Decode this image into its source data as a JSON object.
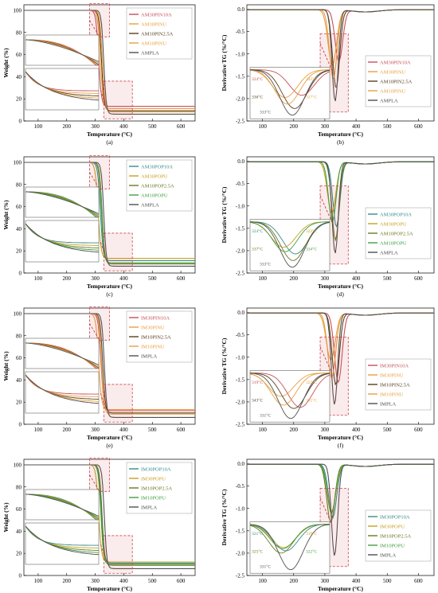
{
  "figure": {
    "colors": {
      "PIN10A": "#c8505a",
      "PINU": "#e8a040",
      "PIN2_5A": "#5a4020",
      "POP10A": "#3a8a8a",
      "POPU": "#c8a020",
      "POP2_5A": "#6a7a20",
      "POPU10": "#40a040",
      "PLA": "#505050",
      "highlight": "#d04048"
    }
  },
  "chart_data": [
    {
      "panel": "(a)",
      "type": "line",
      "kind": "tg",
      "xlabel": "Temperature (°C)",
      "ylabel": "Weight (%)",
      "xlim": [
        50,
        650
      ],
      "ylim": [
        0,
        105
      ],
      "xticks": [
        100,
        200,
        300,
        400,
        500,
        600
      ],
      "yticks": [
        0,
        20,
        40,
        60,
        80,
        100
      ],
      "series": [
        {
          "name": "AM30PIN10A",
          "color": "PIN10A",
          "onset": 312,
          "width": 20,
          "residue": 13
        },
        {
          "name": "AM30PINU",
          "color": "PINU",
          "onset": 318,
          "width": 20,
          "residue": 11
        },
        {
          "name": "AM10PIN2.5A",
          "color": "PIN2_5A",
          "onset": 322,
          "width": 19,
          "residue": 9
        },
        {
          "name": "AM10PINU",
          "color": "PINU",
          "onset": 325,
          "width": 19,
          "residue": 8
        },
        {
          "name": "AMPLA",
          "color": "PLA",
          "onset": 330,
          "width": 18,
          "residue": 6
        }
      ],
      "annotations": []
    },
    {
      "panel": "(b)",
      "type": "line",
      "kind": "dtg",
      "xlabel": "Temperature (°C)",
      "ylabel": "Derivative TG (%/°C)",
      "xlim": [
        50,
        650
      ],
      "ylim": [
        -2.5,
        0.1
      ],
      "xticks": [
        100,
        200,
        300,
        400,
        500,
        600
      ],
      "yticks": [
        0.0,
        -0.5,
        -1.0,
        -1.5,
        -2.0,
        -2.5
      ],
      "series": [
        {
          "name": "AM30PIN10A",
          "color": "PIN10A",
          "peak": 345,
          "depth": -1.15,
          "width": 17
        },
        {
          "name": "AM30PINU",
          "color": "PINU",
          "peak": 324,
          "depth": -1.25,
          "width": 19
        },
        {
          "name": "AM10PIN2.5A",
          "color": "PIN2_5A",
          "peak": 336,
          "depth": -1.75,
          "width": 16
        },
        {
          "name": "AM10PINU",
          "color": "PINU",
          "peak": 327,
          "depth": -1.55,
          "width": 17
        },
        {
          "name": "AMPLA",
          "color": "PLA",
          "peak": 333,
          "depth": -2.05,
          "width": 14
        }
      ],
      "annotations": [
        "324°C",
        "345°C",
        "336°C",
        "327°C",
        "333°C"
      ]
    },
    {
      "panel": "(c)",
      "type": "line",
      "kind": "tg",
      "xlabel": "Temperature (°C)",
      "ylabel": "Weight (%)",
      "xlim": [
        50,
        650
      ],
      "ylim": [
        0,
        105
      ],
      "xticks": [
        100,
        200,
        300,
        400,
        500,
        600
      ],
      "yticks": [
        0,
        20,
        40,
        60,
        80,
        100
      ],
      "series": [
        {
          "name": "AM30POP10A",
          "color": "POP10A",
          "onset": 318,
          "width": 20,
          "residue": 11
        },
        {
          "name": "AM30POPU",
          "color": "POPU",
          "onset": 310,
          "width": 21,
          "residue": 13
        },
        {
          "name": "AM10POP2.5A",
          "color": "POP2_5A",
          "onset": 324,
          "width": 19,
          "residue": 8
        },
        {
          "name": "AM10POPU",
          "color": "POPU10",
          "onset": 322,
          "width": 19,
          "residue": 9
        },
        {
          "name": "AMPLA",
          "color": "PLA",
          "onset": 330,
          "width": 18,
          "residue": 6
        }
      ],
      "annotations": []
    },
    {
      "panel": "(d)",
      "type": "line",
      "kind": "dtg",
      "xlabel": "Temperature (°C)",
      "ylabel": "Derivative TG (%/°C)",
      "xlim": [
        50,
        650
      ],
      "ylim": [
        -2.5,
        0.1
      ],
      "xticks": [
        100,
        200,
        300,
        400,
        500,
        600
      ],
      "yticks": [
        0.0,
        -0.5,
        -1.0,
        -1.5,
        -2.0,
        -2.5
      ],
      "series": [
        {
          "name": "AM30POP10A",
          "color": "POP10A",
          "peak": 337,
          "depth": -1.45,
          "width": 16
        },
        {
          "name": "AM30POPU",
          "color": "POPU",
          "peak": 322,
          "depth": -1.15,
          "width": 19
        },
        {
          "name": "AM10POP2.5A",
          "color": "POP2_5A",
          "peak": 334,
          "depth": -1.75,
          "width": 16
        },
        {
          "name": "AM10POPU",
          "color": "POPU10",
          "peak": 324,
          "depth": -1.35,
          "width": 17
        },
        {
          "name": "AMPLA",
          "color": "PLA",
          "peak": 333,
          "depth": -2.05,
          "width": 14
        }
      ],
      "annotations": [
        "324°C",
        "322°C",
        "337°C",
        "334°C",
        "333°C"
      ]
    },
    {
      "panel": "(e)",
      "type": "line",
      "kind": "tg",
      "xlabel": "Temperature (°C)",
      "ylabel": "Weight (%)",
      "xlim": [
        50,
        650
      ],
      "ylim": [
        0,
        105
      ],
      "xticks": [
        100,
        200,
        300,
        400,
        500,
        600
      ],
      "yticks": [
        0,
        20,
        40,
        60,
        80,
        100
      ],
      "series": [
        {
          "name": "IM30PIN10A",
          "color": "PIN10A",
          "onset": 320,
          "width": 20,
          "residue": 12
        },
        {
          "name": "IM30PINU",
          "color": "PINU",
          "onset": 312,
          "width": 21,
          "residue": 13
        },
        {
          "name": "IM10PIN2.5A",
          "color": "PIN2_5A",
          "onset": 326,
          "width": 19,
          "residue": 10
        },
        {
          "name": "IM10PINU",
          "color": "PINU",
          "onset": 322,
          "width": 19,
          "residue": 9
        },
        {
          "name": "IMPLA",
          "color": "PLA",
          "onset": 332,
          "width": 18,
          "residue": 6
        }
      ],
      "annotations": []
    },
    {
      "panel": "(f)",
      "type": "line",
      "kind": "dtg",
      "xlabel": "Temperature (°C)",
      "ylabel": "Derivative TG (%/°C)",
      "xlim": [
        50,
        650
      ],
      "ylim": [
        -2.5,
        0.1
      ],
      "xticks": [
        100,
        200,
        300,
        400,
        500,
        600
      ],
      "yticks": [
        0.0,
        -0.5,
        -1.0,
        -1.5,
        -2.0,
        -2.5
      ],
      "series": [
        {
          "name": "IM30PIN10A",
          "color": "PIN10A",
          "peak": 343,
          "depth": -1.55,
          "width": 17
        },
        {
          "name": "IM30PINU",
          "color": "PINU",
          "peak": 319,
          "depth": -1.05,
          "width": 20
        },
        {
          "name": "IM10PIN2.5A",
          "color": "PIN2_5A",
          "peak": 335,
          "depth": -1.6,
          "width": 16
        },
        {
          "name": "IM10PINU",
          "color": "PINU",
          "peak": 322,
          "depth": -1.45,
          "width": 18
        },
        {
          "name": "IMPLA",
          "color": "PLA",
          "peak": 331,
          "depth": -2.05,
          "width": 14
        }
      ],
      "annotations": [
        "319°C",
        "322°C",
        "343°C",
        "335°C",
        "331°C"
      ]
    },
    {
      "panel": "(g)",
      "type": "line",
      "kind": "tg",
      "xlabel": "Temperature (°C)",
      "ylabel": "Weight (%)",
      "xlim": [
        50,
        650
      ],
      "ylim": [
        0,
        105
      ],
      "xticks": [
        100,
        200,
        300,
        400,
        500,
        600
      ],
      "yticks": [
        0,
        20,
        40,
        60,
        80,
        100
      ],
      "series": [
        {
          "name": "IM30POP10A",
          "color": "POP10A",
          "onset": 322,
          "width": 20,
          "residue": 11
        },
        {
          "name": "IM30POPU",
          "color": "POPU",
          "onset": 312,
          "width": 21,
          "residue": 12
        },
        {
          "name": "IM10POP2.5A",
          "color": "POP2_5A",
          "onset": 324,
          "width": 19,
          "residue": 9
        },
        {
          "name": "IM10POPU",
          "color": "POPU10",
          "onset": 320,
          "width": 19,
          "residue": 10
        },
        {
          "name": "IMPLA",
          "color": "PLA",
          "onset": 332,
          "width": 18,
          "residue": 6
        }
      ],
      "annotations": []
    },
    {
      "panel": "(h)",
      "type": "line",
      "kind": "dtg",
      "xlabel": "Temperature (°C)",
      "ylabel": "Derivative TG (%/°C)",
      "xlim": [
        50,
        650
      ],
      "ylim": [
        -2.5,
        0.1
      ],
      "xticks": [
        100,
        200,
        300,
        400,
        500,
        600
      ],
      "yticks": [
        0.0,
        -0.5,
        -1.0,
        -1.5,
        -2.0,
        -2.5
      ],
      "series": [
        {
          "name": "IM30POP10A",
          "color": "POP10A",
          "peak": 325,
          "depth": -1.2,
          "width": 18
        },
        {
          "name": "IM30POPU",
          "color": "POPU",
          "peak": 322,
          "depth": -1.05,
          "width": 19
        },
        {
          "name": "IM10POP2.5A",
          "color": "POP2_5A",
          "peak": 319,
          "depth": -1.3,
          "width": 18
        },
        {
          "name": "IM10POPU",
          "color": "POPU10",
          "peak": 321,
          "depth": -1.1,
          "width": 18
        },
        {
          "name": "IMPLA",
          "color": "PLA",
          "peak": 331,
          "depth": -2.05,
          "width": 14
        }
      ],
      "annotations": [
        "321°C",
        "319°C",
        "325°C",
        "322°C",
        "331°C"
      ]
    }
  ]
}
